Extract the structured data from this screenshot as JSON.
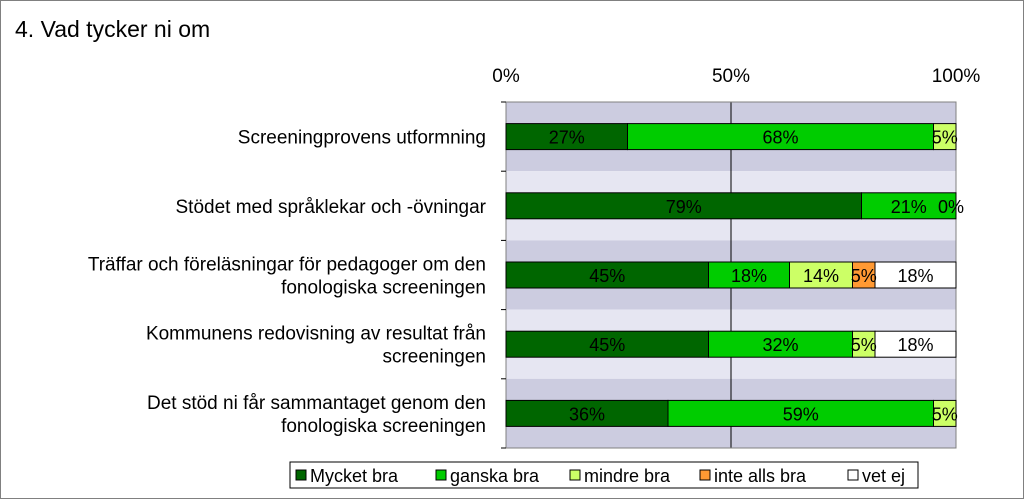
{
  "title": "4. Vad tycker ni om",
  "chart_data": {
    "type": "bar",
    "orientation": "horizontal",
    "stacked": "percent",
    "title": "4. Vad tycker ni om",
    "categories": [
      [
        "Screeningprovens utformning"
      ],
      [
        "Stödet med språklekar och -övningar"
      ],
      [
        "Träffar och föreläsningar för pedagoger om den",
        "fonologiska screeningen"
      ],
      [
        "Kommunens redovisning av resultat från",
        "screeningen"
      ],
      [
        "Det stöd ni får sammantaget genom den",
        "fonologiska screeningen"
      ]
    ],
    "series": [
      {
        "name": "Mycket bra",
        "color": "#006600",
        "values": [
          27,
          79,
          45,
          45,
          36
        ],
        "labels": [
          "27%",
          "79%",
          "45%",
          "45%",
          "36%"
        ]
      },
      {
        "name": "ganska bra",
        "color": "#00CC00",
        "values": [
          68,
          21,
          18,
          32,
          59
        ],
        "labels": [
          "68%",
          "21%",
          "18%",
          "32%",
          "59%"
        ]
      },
      {
        "name": "mindre bra",
        "color": "#CCFF66",
        "values": [
          5,
          0,
          14,
          5,
          5
        ],
        "labels": [
          "5%",
          "0%",
          "14%",
          "5%",
          "5%"
        ]
      },
      {
        "name": "inte alls bra",
        "color": "#FF9933",
        "values": [
          0,
          0,
          5,
          0,
          0
        ],
        "labels": [
          "0%",
          "0%",
          "5%",
          "0%",
          "0%"
        ]
      },
      {
        "name": "vet ej",
        "color": "#FFFFFF",
        "values": [
          0,
          0,
          18,
          18,
          0
        ],
        "labels": [
          "0%",
          "0%",
          "18%",
          "18%",
          "0%"
        ]
      }
    ],
    "x_axis": {
      "position": "top",
      "range": [
        0,
        100
      ],
      "ticks": [
        "0%",
        "50%",
        "100%"
      ]
    },
    "grid": true,
    "legend": {
      "position": "bottom"
    }
  }
}
